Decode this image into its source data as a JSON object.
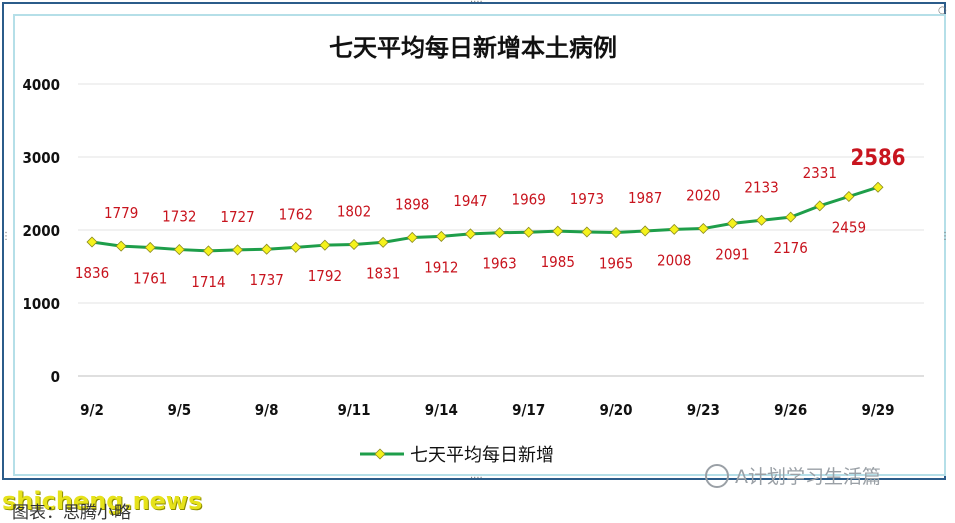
{
  "chart_data": {
    "type": "line",
    "title": "七天平均每日新增本土病例",
    "xlabel": "",
    "ylabel": "",
    "x": [
      "9/2",
      "9/3",
      "9/4",
      "9/5",
      "9/6",
      "9/7",
      "9/8",
      "9/9",
      "9/10",
      "9/11",
      "9/12",
      "9/13",
      "9/14",
      "9/15",
      "9/16",
      "9/17",
      "9/18",
      "9/19",
      "9/20",
      "9/21",
      "9/22",
      "9/23",
      "9/24",
      "9/25",
      "9/26",
      "9/27",
      "9/28",
      "9/29"
    ],
    "x_tick_labels": [
      "9/2",
      "9/5",
      "9/8",
      "9/11",
      "9/14",
      "9/17",
      "9/20",
      "9/23",
      "9/26",
      "9/29"
    ],
    "ylim": [
      0,
      4000
    ],
    "y_ticks": [
      0,
      1000,
      2000,
      3000,
      4000
    ],
    "grid": "horizontal",
    "legend_position": "bottom",
    "series": [
      {
        "name": "七天平均每日新增",
        "color": "#1e9e4a",
        "marker_color": "#f5f21c",
        "values": [
          1836,
          1779,
          1761,
          1732,
          1714,
          1727,
          1737,
          1762,
          1792,
          1802,
          1831,
          1898,
          1912,
          1947,
          1963,
          1969,
          1985,
          1973,
          1965,
          1987,
          2008,
          2020,
          2091,
          2133,
          2176,
          2331,
          2459,
          2586
        ]
      }
    ],
    "label_positions": [
      "below",
      "above",
      "below",
      "above",
      "below",
      "above",
      "below",
      "above",
      "below",
      "above",
      "below",
      "above",
      "below",
      "above",
      "below",
      "above",
      "below",
      "above",
      "below",
      "above",
      "below",
      "above",
      "below",
      "above",
      "below",
      "above",
      "below",
      "above"
    ],
    "highlight_index": 27,
    "data_label_color": "#c8141e"
  },
  "watermarks": {
    "wechat": "A计划学习生活篇",
    "site": "shicheng.news",
    "caption": "图表：思腾小略"
  }
}
